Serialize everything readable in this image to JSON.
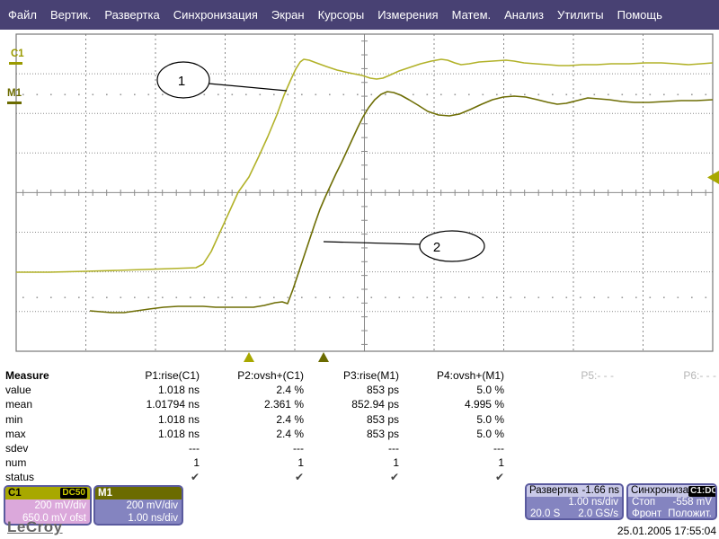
{
  "menu": {
    "items": [
      "Файл",
      "Вертик.",
      "Развертка",
      "Синхронизация",
      "Экран",
      "Курсоры",
      "Измерения",
      "Матем.",
      "Анализ",
      "Утилиты",
      "Помощь"
    ]
  },
  "colors": {
    "menu_bg": "#484173",
    "c1_trace": "#b2b229",
    "m1_trace": "#6e6e05",
    "panel_purple": "#8484c0",
    "c1_panel_pink": "#dba8db",
    "c1_title_olive": "#a8a800",
    "m1_title_olive": "#6b6b00"
  },
  "plot": {
    "left_labels": {
      "c1": "C1",
      "m1": "M1"
    },
    "annotations": [
      {
        "label": "1"
      },
      {
        "label": "2"
      }
    ]
  },
  "traces": {
    "c1": "18,303 55,303 95,302 130,301 160,300 190,299 218,298 226,294 235,280 245,258 255,236 265,214 277,197 288,174 298,152 308,128 316,106 323,90 329,77 334,69 338,66 344,67 352,70 363,74 375,78 388,81 403,84 412,87 419,88 426,87 433,84 444,79 456,75 468,71 480,68 491,66 498,67 506,70 513,72 522,71 533,69 548,68 563,67 572,68 583,70 596,71 610,72 622,73 633,73 648,72 664,72 680,71 700,71 718,70 736,70 752,71 766,72 780,71 793,70",
    "m1": "100,346 112,347 124,348 138,348 152,346 166,344 182,342 198,341 212,341 226,341 240,342 254,342 268,342 282,342 294,340 306,337 314,336 320,338 326,322 332,304 338,286 344,268 350,250 356,233 362,219 368,206 374,193 380,181 386,168 392,155 398,142 404,130 410,120 417,111 424,105 431,102 438,103 446,106 455,111 465,117 476,124 488,128 500,129 511,127 523,122 536,116 548,111 560,108 572,107 585,108 598,111 610,114 620,116 630,115 642,112 654,109 666,110 678,111 692,113 706,114 722,114 740,113 758,112 775,112 793,111"
  },
  "measure_table": {
    "title": "Measure",
    "row_labels": [
      "value",
      "mean",
      "min",
      "max",
      "sdev",
      "num",
      "status"
    ],
    "columns": [
      {
        "header": "P1:rise(C1)",
        "inactive": false,
        "values": [
          "1.018 ns",
          "1.01794 ns",
          "1.018 ns",
          "1.018 ns",
          "---",
          "1",
          "✔"
        ]
      },
      {
        "header": "P2:ovsh+(C1)",
        "inactive": false,
        "values": [
          "2.4 %",
          "2.361 %",
          "2.4 %",
          "2.4 %",
          "---",
          "1",
          "✔"
        ]
      },
      {
        "header": "P3:rise(M1)",
        "inactive": false,
        "values": [
          "853 ps",
          "852.94 ps",
          "853 ps",
          "853 ps",
          "---",
          "1",
          "✔"
        ]
      },
      {
        "header": "P4:ovsh+(M1)",
        "inactive": false,
        "values": [
          "5.0 %",
          "4.995 %",
          "5.0 %",
          "5.0 %",
          "---",
          "1",
          "✔"
        ]
      },
      {
        "header": "P5:- - -",
        "inactive": true,
        "values": [
          "",
          "",
          "",
          "",
          "",
          "",
          ""
        ]
      },
      {
        "header": "P6:- - -",
        "inactive": true,
        "values": [
          "",
          "",
          "",
          "",
          "",
          "",
          ""
        ]
      }
    ]
  },
  "descriptors": {
    "c1": {
      "title": "C1",
      "coupling_badge": "DC50",
      "line1": "200 mV/div",
      "line2": "650.0 mV ofst"
    },
    "m1": {
      "title": "M1",
      "line1": "200 mV/div",
      "line2": "1.00 ns/div"
    },
    "timebase": {
      "title": "Развертка",
      "delay": "-1.66 ns",
      "scale": "1.00 ns/div",
      "samples": "20.0 S",
      "rate": "2.0 GS/s"
    },
    "trigger": {
      "title": "Синхрониза",
      "source_badge": "C1:DC",
      "mode_label": "Стоп",
      "level": "-558 mV",
      "slope_label": "Фронт",
      "slope_value": "Положит."
    }
  },
  "footer": {
    "logo": "LeCroy",
    "datetime": "25.01.2005 17:55:04"
  }
}
